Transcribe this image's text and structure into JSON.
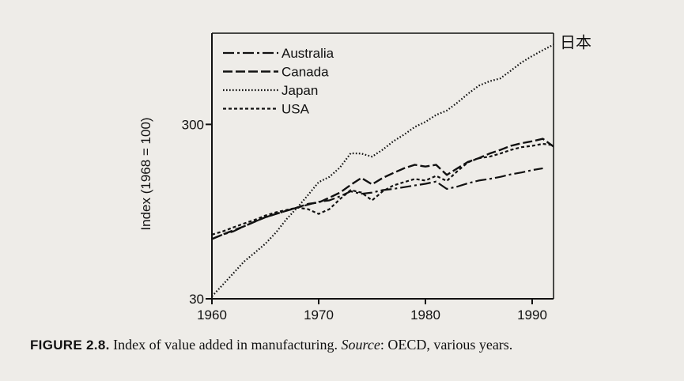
{
  "chart_data": {
    "type": "line",
    "ylabel": "Index (1968 = 100)",
    "xlabel": "",
    "y_scale": "log",
    "xlim": [
      1960,
      1992
    ],
    "ylim": [
      30,
      1000
    ],
    "x_ticks": [
      "1960",
      "1970",
      "1980",
      "1990"
    ],
    "y_ticks": [
      "30",
      "300"
    ],
    "legend_position": "top-left",
    "annotation": "日本",
    "series": [
      {
        "name": "Australia",
        "line_style": "dash-dot",
        "x": [
          1960,
          1961,
          1962,
          1963,
          1964,
          1965,
          1966,
          1967,
          1968,
          1969,
          1970,
          1971,
          1972,
          1973,
          1974,
          1975,
          1976,
          1977,
          1978,
          1979,
          1980,
          1981,
          1982,
          1983,
          1984,
          1985,
          1986,
          1987,
          1988,
          1989,
          1990,
          1991
        ],
        "y": [
          66,
          70,
          73,
          78,
          83,
          88,
          92,
          96,
          100,
          104,
          108,
          110,
          116,
          124,
          120,
          122,
          126,
          128,
          131,
          134,
          137,
          141,
          128,
          132,
          138,
          143,
          146,
          150,
          155,
          159,
          164,
          168
        ]
      },
      {
        "name": "Canada",
        "line_style": "dashed",
        "x": [
          1960,
          1961,
          1962,
          1963,
          1964,
          1965,
          1966,
          1967,
          1968,
          1969,
          1970,
          1971,
          1972,
          1973,
          1974,
          1975,
          1976,
          1977,
          1978,
          1979,
          1980,
          1981,
          1982,
          1983,
          1984,
          1985,
          1986,
          1987,
          1988,
          1989,
          1990,
          1991,
          1992
        ],
        "y": [
          66,
          70,
          74,
          78,
          83,
          88,
          92,
          96,
          100,
          105,
          107,
          114,
          122,
          135,
          148,
          136,
          148,
          158,
          168,
          176,
          172,
          176,
          154,
          168,
          183,
          192,
          204,
          214,
          226,
          234,
          240,
          248,
          224
        ]
      },
      {
        "name": "Japan",
        "line_style": "dotted",
        "x": [
          1960,
          1961,
          1962,
          1963,
          1964,
          1965,
          1966,
          1967,
          1968,
          1969,
          1970,
          1971,
          1972,
          1973,
          1974,
          1975,
          1976,
          1977,
          1978,
          1979,
          1980,
          1981,
          1982,
          1983,
          1984,
          1985,
          1986,
          1987,
          1988,
          1989,
          1990,
          1991,
          1992
        ],
        "y": [
          31,
          36,
          42,
          49,
          55,
          62,
          72,
          86,
          100,
          118,
          140,
          150,
          170,
          205,
          204,
          196,
          215,
          240,
          262,
          290,
          310,
          340,
          360,
          400,
          450,
          500,
          530,
          550,
          610,
          680,
          740,
          800,
          860
        ]
      },
      {
        "name": "USA",
        "line_style": "short-dash",
        "x": [
          1960,
          1961,
          1962,
          1963,
          1964,
          1965,
          1966,
          1967,
          1968,
          1969,
          1970,
          1971,
          1972,
          1973,
          1974,
          1975,
          1976,
          1977,
          1978,
          1979,
          1980,
          1981,
          1982,
          1983,
          1984,
          1985,
          1986,
          1987,
          1988,
          1989,
          1990,
          1991,
          1992
        ],
        "y": [
          70,
          73,
          77,
          81,
          85,
          90,
          94,
          97,
          100,
          98,
          92,
          98,
          112,
          126,
          122,
          110,
          124,
          134,
          140,
          146,
          143,
          152,
          142,
          162,
          182,
          192,
          196,
          204,
          214,
          222,
          226,
          232,
          228
        ]
      }
    ]
  },
  "caption": {
    "label": "FIGURE 2.8.",
    "text_before_source": " Index of value added in manufacturing. ",
    "source_word": "Source",
    "text_after_source": ": OECD, various years."
  }
}
